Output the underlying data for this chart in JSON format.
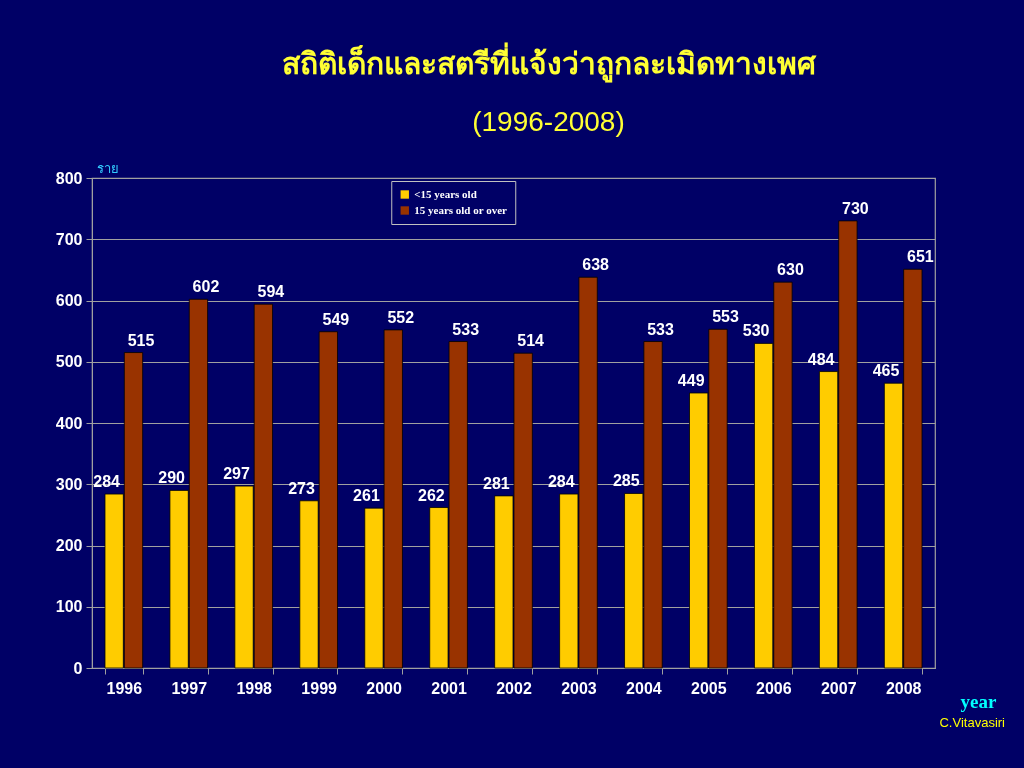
{
  "chart_data": {
    "type": "bar",
    "title": "สถิติเด็กและสตรีที่แจ้งว่าถูกละเมิดทางเพศ",
    "subtitle": "(1996-2008)",
    "xlabel": "year",
    "ylabel": "ราย",
    "annotations": [
      "C.Vitavasiri"
    ],
    "categories": [
      "1996",
      "1997",
      "1998",
      "1999",
      "2000",
      "2001",
      "2002",
      "2003",
      "2004",
      "2005",
      "2006",
      "2007",
      "2008"
    ],
    "series": [
      {
        "name": "<15 years old",
        "color": "#ffcc00",
        "values": [
          284,
          290,
          297,
          273,
          261,
          262,
          281,
          284,
          285,
          449,
          530,
          484,
          465
        ]
      },
      {
        "name": "15 years old or over",
        "color": "#993300",
        "values": [
          515,
          602,
          594,
          549,
          552,
          533,
          514,
          638,
          533,
          553,
          630,
          730,
          651
        ]
      }
    ],
    "ylim": [
      0,
      800
    ],
    "yticks": [
      0,
      100,
      200,
      300,
      400,
      500,
      600,
      700,
      800
    ],
    "grid": "y",
    "legend": "top",
    "data_labels": true
  }
}
